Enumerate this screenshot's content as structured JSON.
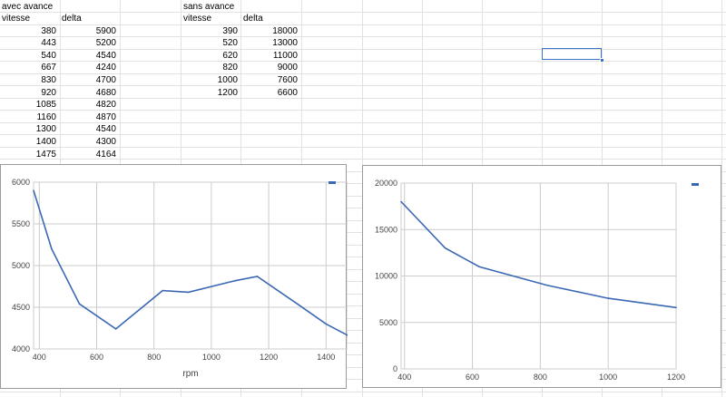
{
  "sheet": {
    "table_a": {
      "title": "avec avance",
      "headers": [
        "vitesse",
        "delta"
      ],
      "rows": [
        [
          "380",
          "5900"
        ],
        [
          "443",
          "5200"
        ],
        [
          "540",
          "4540"
        ],
        [
          "667",
          "4240"
        ],
        [
          "830",
          "4700"
        ],
        [
          "920",
          "4680"
        ],
        [
          "1085",
          "4820"
        ],
        [
          "1160",
          "4870"
        ],
        [
          "1300",
          "4540"
        ],
        [
          "1400",
          "4300"
        ],
        [
          "1475",
          "4164"
        ]
      ]
    },
    "table_b": {
      "title": "sans avance",
      "headers": [
        "vitesse",
        "delta"
      ],
      "rows": [
        [
          "390",
          "18000"
        ],
        [
          "520",
          "13000"
        ],
        [
          "620",
          "11000"
        ],
        [
          "820",
          "9000"
        ],
        [
          "1000",
          "7600"
        ],
        [
          "1200",
          "6600"
        ]
      ]
    }
  },
  "colors": {
    "series": "#3b68b4",
    "gridline": "#cccccc",
    "cell_grid": "#e2e2e2",
    "selection": "#3a72c7"
  },
  "chart_data": [
    {
      "type": "line",
      "title": "",
      "xlabel": "rpm",
      "ylabel": "",
      "xlim": [
        380,
        1475
      ],
      "ylim": [
        4000,
        6000
      ],
      "x_ticks": [
        400,
        600,
        800,
        1000,
        1200,
        1400
      ],
      "y_ticks": [
        4000,
        4500,
        5000,
        5500,
        6000
      ],
      "grid": true,
      "legend": "top-right",
      "series": [
        {
          "x": [
            380,
            443,
            540,
            667,
            830,
            920,
            1085,
            1160,
            1300,
            1400,
            1475
          ],
          "y": [
            5900,
            5200,
            4540,
            4240,
            4700,
            4680,
            4820,
            4870,
            4540,
            4300,
            4164
          ]
        }
      ]
    },
    {
      "type": "line",
      "title": "",
      "xlabel": "",
      "ylabel": "",
      "xlim": [
        390,
        1200
      ],
      "ylim": [
        0,
        20000
      ],
      "x_ticks": [
        400,
        600,
        800,
        1000,
        1200
      ],
      "y_ticks": [
        0,
        5000,
        10000,
        15000,
        20000
      ],
      "grid": true,
      "legend": "top-right",
      "series": [
        {
          "x": [
            390,
            520,
            620,
            820,
            1000,
            1200
          ],
          "y": [
            18000,
            13000,
            11000,
            9000,
            7600,
            6600
          ]
        }
      ]
    }
  ]
}
